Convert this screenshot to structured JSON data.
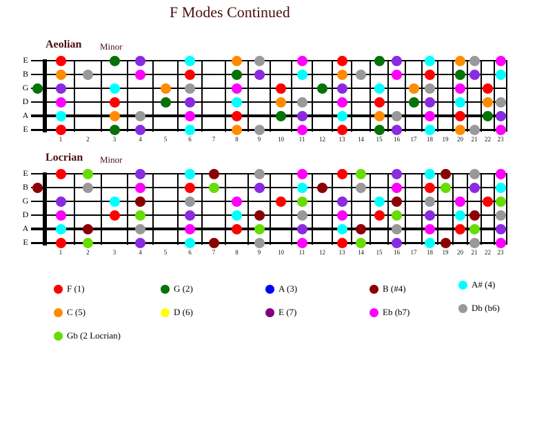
{
  "title": "F Modes Continued",
  "note_colors": {
    "F": "#ff0000",
    "G": "#067306",
    "A": "#0000ff",
    "B": "#8b0000",
    "Bb": "#00ffff",
    "C": "#ff8c00",
    "D": "#ffff00",
    "E": "#800080",
    "Eb": "#ff00ff",
    "Db": "#999999",
    "Gb": "#66dd00",
    "Ab": "#8a2be2"
  },
  "fret_numbers": [
    "1",
    "2",
    "3",
    "4",
    "5",
    "6",
    "7",
    "8",
    "9",
    "10",
    "11",
    "12",
    "13",
    "14",
    "15",
    "16",
    "17",
    "18",
    "19",
    "20",
    "21",
    "22",
    "23"
  ],
  "boards": [
    {
      "name": "Aeolian",
      "subtitle": "Minor",
      "string_labels": [
        "E",
        "B",
        "G",
        "D",
        "A",
        "E"
      ],
      "strings": [
        {
          "label": "E",
          "dots": [
            [
              1,
              "F"
            ],
            [
              3,
              "G"
            ],
            [
              4,
              "Ab"
            ],
            [
              6,
              "Bb"
            ],
            [
              8,
              "C"
            ],
            [
              9,
              "Db"
            ],
            [
              11,
              "Eb"
            ],
            [
              13,
              "F"
            ],
            [
              15,
              "G"
            ],
            [
              16,
              "Ab"
            ],
            [
              18,
              "Bb"
            ],
            [
              20,
              "C"
            ],
            [
              21,
              "Db"
            ],
            [
              23,
              "Eb"
            ]
          ]
        },
        {
          "label": "B",
          "dots": [
            [
              1,
              "C"
            ],
            [
              2,
              "Db"
            ],
            [
              4,
              "Eb"
            ],
            [
              6,
              "F"
            ],
            [
              8,
              "G"
            ],
            [
              9,
              "Ab"
            ],
            [
              11,
              "Bb"
            ],
            [
              13,
              "C"
            ],
            [
              14,
              "Db"
            ],
            [
              16,
              "Eb"
            ],
            [
              18,
              "F"
            ],
            [
              20,
              "G"
            ],
            [
              21,
              "Ab"
            ],
            [
              23,
              "Bb"
            ]
          ]
        },
        {
          "label": "G",
          "dots": [
            [
              0,
              "G"
            ],
            [
              1,
              "Ab"
            ],
            [
              3,
              "Bb"
            ],
            [
              5,
              "C"
            ],
            [
              6,
              "Db"
            ],
            [
              8,
              "Eb"
            ],
            [
              10,
              "F"
            ],
            [
              12,
              "G"
            ],
            [
              13,
              "Ab"
            ],
            [
              15,
              "Bb"
            ],
            [
              17,
              "C"
            ],
            [
              18,
              "Db"
            ],
            [
              20,
              "Eb"
            ],
            [
              22,
              "F"
            ]
          ]
        },
        {
          "label": "D",
          "dots": [
            [
              1,
              "Eb"
            ],
            [
              3,
              "F"
            ],
            [
              5,
              "G"
            ],
            [
              6,
              "Ab"
            ],
            [
              8,
              "Bb"
            ],
            [
              10,
              "C"
            ],
            [
              11,
              "Db"
            ],
            [
              13,
              "Eb"
            ],
            [
              15,
              "F"
            ],
            [
              17,
              "G"
            ],
            [
              18,
              "Ab"
            ],
            [
              20,
              "Bb"
            ],
            [
              22,
              "C"
            ],
            [
              23,
              "Db"
            ]
          ]
        },
        {
          "label": "A",
          "dots": [
            [
              1,
              "Bb"
            ],
            [
              3,
              "C"
            ],
            [
              4,
              "Db"
            ],
            [
              6,
              "Eb"
            ],
            [
              8,
              "F"
            ],
            [
              10,
              "G"
            ],
            [
              11,
              "Ab"
            ],
            [
              13,
              "Bb"
            ],
            [
              15,
              "C"
            ],
            [
              16,
              "Db"
            ],
            [
              18,
              "Eb"
            ],
            [
              20,
              "F"
            ],
            [
              22,
              "G"
            ],
            [
              23,
              "Ab"
            ]
          ]
        },
        {
          "label": "E",
          "dots": [
            [
              1,
              "F"
            ],
            [
              3,
              "G"
            ],
            [
              4,
              "Ab"
            ],
            [
              6,
              "Bb"
            ],
            [
              8,
              "C"
            ],
            [
              9,
              "Db"
            ],
            [
              11,
              "Eb"
            ],
            [
              13,
              "F"
            ],
            [
              15,
              "G"
            ],
            [
              16,
              "Ab"
            ],
            [
              18,
              "Bb"
            ],
            [
              20,
              "C"
            ],
            [
              21,
              "Db"
            ],
            [
              23,
              "Eb"
            ]
          ]
        }
      ]
    },
    {
      "name": "Locrian",
      "subtitle": "Minor",
      "string_labels": [
        "E",
        "B",
        "G",
        "D",
        "A",
        "E"
      ],
      "strings": [
        {
          "label": "E",
          "dots": [
            [
              1,
              "F"
            ],
            [
              2,
              "Gb"
            ],
            [
              4,
              "Ab"
            ],
            [
              6,
              "Bb"
            ],
            [
              7,
              "B"
            ],
            [
              9,
              "Db"
            ],
            [
              11,
              "Eb"
            ],
            [
              13,
              "F"
            ],
            [
              14,
              "Gb"
            ],
            [
              16,
              "Ab"
            ],
            [
              18,
              "Bb"
            ],
            [
              19,
              "B"
            ],
            [
              21,
              "Db"
            ],
            [
              23,
              "Eb"
            ]
          ]
        },
        {
          "label": "B",
          "dots": [
            [
              0,
              "B"
            ],
            [
              2,
              "Db"
            ],
            [
              4,
              "Eb"
            ],
            [
              6,
              "F"
            ],
            [
              7,
              "Gb"
            ],
            [
              9,
              "Ab"
            ],
            [
              11,
              "Bb"
            ],
            [
              12,
              "B"
            ],
            [
              14,
              "Db"
            ],
            [
              16,
              "Eb"
            ],
            [
              18,
              "F"
            ],
            [
              19,
              "Gb"
            ],
            [
              21,
              "Ab"
            ],
            [
              23,
              "Bb"
            ]
          ]
        },
        {
          "label": "G",
          "dots": [
            [
              1,
              "Ab"
            ],
            [
              3,
              "Bb"
            ],
            [
              4,
              "B"
            ],
            [
              6,
              "Db"
            ],
            [
              8,
              "Eb"
            ],
            [
              10,
              "F"
            ],
            [
              11,
              "Gb"
            ],
            [
              13,
              "Ab"
            ],
            [
              15,
              "Bb"
            ],
            [
              16,
              "B"
            ],
            [
              18,
              "Db"
            ],
            [
              20,
              "Eb"
            ],
            [
              22,
              "F"
            ],
            [
              23,
              "Gb"
            ]
          ]
        },
        {
          "label": "D",
          "dots": [
            [
              1,
              "Eb"
            ],
            [
              3,
              "F"
            ],
            [
              4,
              "Gb"
            ],
            [
              6,
              "Ab"
            ],
            [
              8,
              "Bb"
            ],
            [
              9,
              "B"
            ],
            [
              11,
              "Db"
            ],
            [
              13,
              "Eb"
            ],
            [
              15,
              "F"
            ],
            [
              16,
              "Gb"
            ],
            [
              18,
              "Ab"
            ],
            [
              20,
              "Bb"
            ],
            [
              21,
              "B"
            ],
            [
              23,
              "Db"
            ]
          ]
        },
        {
          "label": "A",
          "dots": [
            [
              1,
              "Bb"
            ],
            [
              2,
              "B"
            ],
            [
              4,
              "Db"
            ],
            [
              6,
              "Eb"
            ],
            [
              8,
              "F"
            ],
            [
              9,
              "Gb"
            ],
            [
              11,
              "Ab"
            ],
            [
              13,
              "Bb"
            ],
            [
              14,
              "B"
            ],
            [
              16,
              "Db"
            ],
            [
              18,
              "Eb"
            ],
            [
              20,
              "F"
            ],
            [
              21,
              "Gb"
            ],
            [
              23,
              "Ab"
            ]
          ]
        },
        {
          "label": "E",
          "dots": [
            [
              1,
              "F"
            ],
            [
              2,
              "Gb"
            ],
            [
              4,
              "Ab"
            ],
            [
              6,
              "Bb"
            ],
            [
              7,
              "B"
            ],
            [
              9,
              "Db"
            ],
            [
              11,
              "Eb"
            ],
            [
              13,
              "F"
            ],
            [
              14,
              "Gb"
            ],
            [
              16,
              "Ab"
            ],
            [
              18,
              "Bb"
            ],
            [
              19,
              "B"
            ],
            [
              21,
              "Db"
            ],
            [
              23,
              "Eb"
            ]
          ]
        }
      ]
    }
  ],
  "legend": {
    "rows": [
      [
        {
          "note": "F",
          "label": "F (1)"
        },
        {
          "note": "G",
          "label": "G (2)"
        },
        {
          "note": "A",
          "label": "A (3)"
        },
        {
          "note": "B",
          "label": "B (#4)"
        },
        {
          "note": "Bb",
          "label": "A# (4)"
        }
      ],
      [
        {
          "note": "C",
          "label": "C (5)"
        },
        {
          "note": "D",
          "label": "D (6)"
        },
        {
          "note": "E",
          "label": "E (7)"
        },
        {
          "note": "Eb",
          "label": "Eb (b7)"
        },
        {
          "note": "Db",
          "label": "Db (b6)"
        }
      ],
      [
        {
          "note": "Gb",
          "label": "Gb (2 Locrian)"
        }
      ]
    ]
  }
}
